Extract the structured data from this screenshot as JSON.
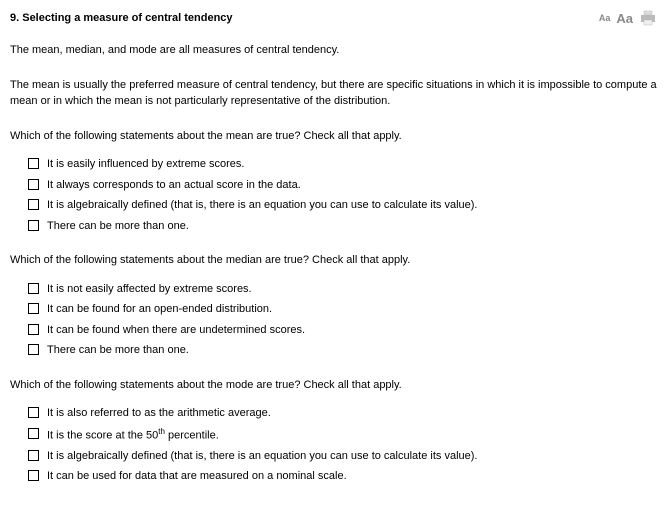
{
  "header": {
    "title": "9.  Selecting a measure of central tendency",
    "aa_small": "Aa",
    "aa_large": "Aa"
  },
  "intro": [
    "The mean, median, and mode are all measures of central tendency.",
    "The mean is usually the preferred measure of central tendency, but there are specific situations in which it is impossible to compute a mean or in which the mean is not particularly representative of the distribution."
  ],
  "questions": [
    {
      "prompt": "Which of the following statements about the mean are true? Check all that apply.",
      "options": [
        "It is easily influenced by extreme scores.",
        "It always corresponds to an actual score in the data.",
        "It is algebraically defined (that is, there is an equation you can use to calculate its value).",
        "There can be more than one."
      ]
    },
    {
      "prompt": "Which of the following statements about the median are true? Check all that apply.",
      "options": [
        "It is not easily affected by extreme scores.",
        "It can be found for an open-ended distribution.",
        "It can be found when there are undetermined scores.",
        "There can be more than one."
      ]
    },
    {
      "prompt": "Which of the following statements about the mode are true? Check all that apply.",
      "options": [
        "It is also referred to as the arithmetic average.",
        "It is the score at the 50<sup>th</sup> percentile.",
        "It is algebraically defined (that is, there is an equation you can use to calculate its value).",
        "It can be used for data that are measured on a nominal scale."
      ]
    }
  ]
}
